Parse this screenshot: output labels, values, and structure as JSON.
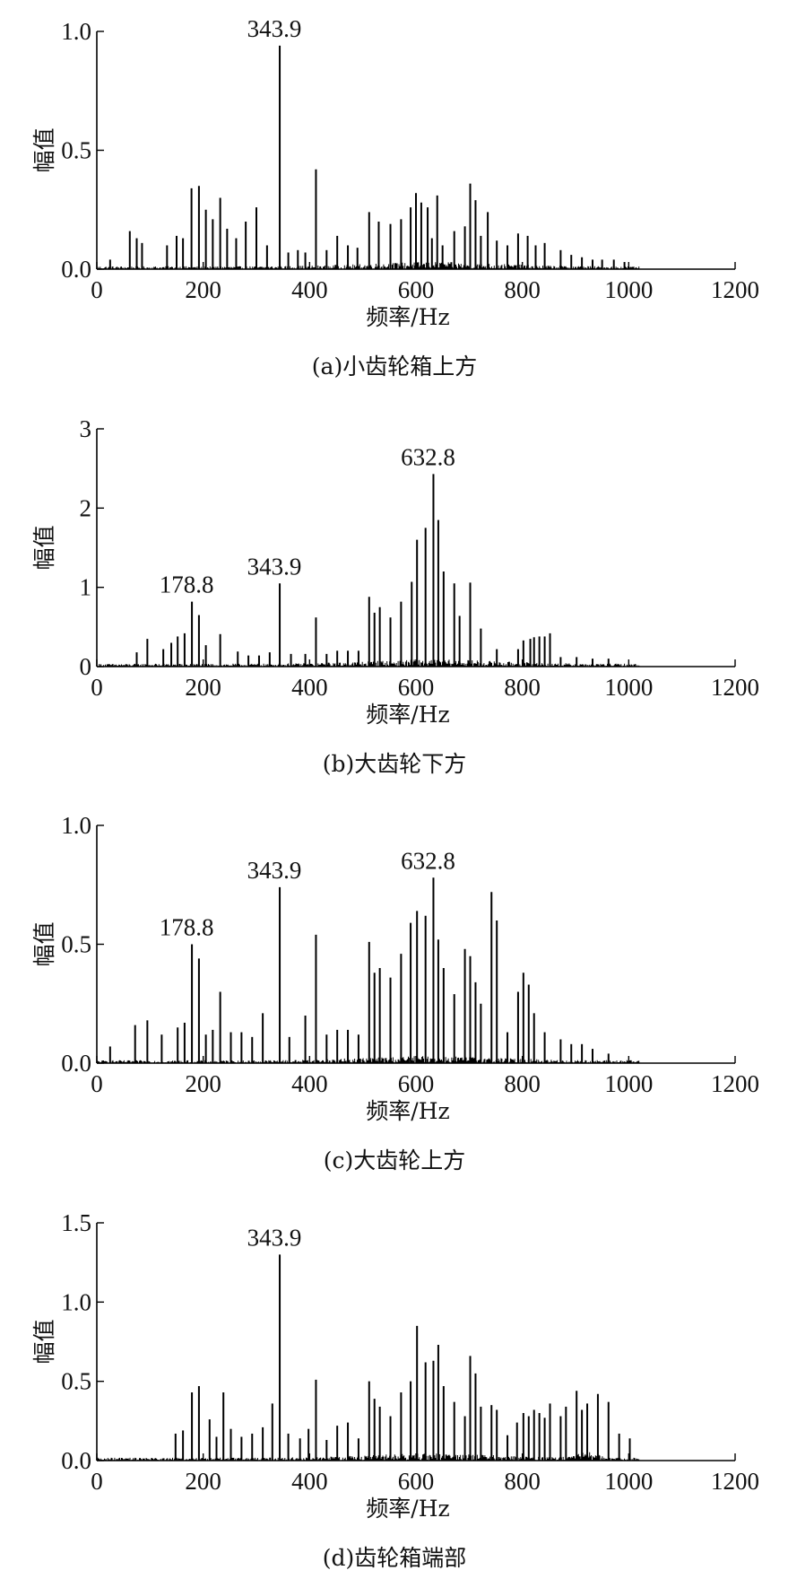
{
  "chart_data": [
    {
      "type": "bar",
      "caption": "(a)小齿轮箱上方",
      "xlabel": "频率/Hz",
      "ylabel": "幅值",
      "xlim": [
        0,
        1200
      ],
      "ylim": [
        0,
        1.0
      ],
      "xticks": [
        0,
        200,
        400,
        600,
        800,
        1000,
        1200
      ],
      "xtick_labels": [
        "0",
        "200",
        "400",
        "600",
        "800",
        "1000",
        "1200"
      ],
      "yticks": [
        0,
        0.5,
        1.0
      ],
      "ytick_labels": [
        "0.0",
        "0.5",
        "1.0"
      ],
      "annotations": [
        {
          "label": "343.9",
          "x": 343.9,
          "y": 0.94
        }
      ],
      "peaks": {
        "x": [
          25,
          62,
          75,
          85,
          132,
          150,
          162,
          178,
          192,
          205,
          218,
          232,
          245,
          262,
          280,
          300,
          320,
          343.9,
          360,
          378,
          392,
          412,
          432,
          452,
          472,
          490,
          512,
          530,
          552,
          572,
          590,
          600,
          610,
          622,
          630,
          640,
          650,
          672,
          692,
          702,
          712,
          722,
          735,
          752,
          772,
          792,
          810,
          825,
          842,
          872,
          892,
          912,
          932,
          950,
          972,
          992
        ],
        "values": [
          0.04,
          0.16,
          0.13,
          0.11,
          0.1,
          0.14,
          0.13,
          0.34,
          0.35,
          0.25,
          0.21,
          0.3,
          0.17,
          0.13,
          0.2,
          0.26,
          0.1,
          0.94,
          0.07,
          0.08,
          0.07,
          0.42,
          0.08,
          0.14,
          0.1,
          0.09,
          0.24,
          0.2,
          0.19,
          0.21,
          0.26,
          0.32,
          0.28,
          0.26,
          0.13,
          0.31,
          0.1,
          0.16,
          0.18,
          0.36,
          0.29,
          0.14,
          0.24,
          0.12,
          0.1,
          0.15,
          0.14,
          0.1,
          0.11,
          0.08,
          0.06,
          0.05,
          0.04,
          0.04,
          0.04,
          0.03
        ]
      }
    },
    {
      "type": "bar",
      "caption": "(b)大齿轮下方",
      "xlabel": "频率/Hz",
      "ylabel": "幅值",
      "xlim": [
        0,
        1200
      ],
      "ylim": [
        0,
        3
      ],
      "xticks": [
        0,
        200,
        400,
        600,
        800,
        1000,
        1200
      ],
      "xtick_labels": [
        "0",
        "200",
        "400",
        "600",
        "800",
        "1000",
        "1200"
      ],
      "yticks": [
        0,
        1,
        2,
        3
      ],
      "ytick_labels": [
        "0",
        "1",
        "2",
        "3"
      ],
      "annotations": [
        {
          "label": "178.8",
          "x": 178.8,
          "y": 0.82
        },
        {
          "label": "343.9",
          "x": 343.9,
          "y": 1.05
        },
        {
          "label": "632.8",
          "x": 632.8,
          "y": 2.43
        }
      ],
      "peaks": {
        "x": [
          75,
          95,
          125,
          140,
          152,
          165,
          178.8,
          192,
          205,
          232,
          265,
          285,
          305,
          325,
          343.9,
          365,
          392,
          412,
          432,
          452,
          472,
          492,
          512,
          522,
          532,
          552,
          572,
          592,
          602,
          618,
          632.8,
          642,
          652,
          672,
          682,
          702,
          722,
          752,
          792,
          802,
          815,
          822,
          832,
          842,
          852,
          872,
          902,
          932,
          962
        ],
        "values": [
          0.18,
          0.35,
          0.22,
          0.3,
          0.38,
          0.42,
          0.82,
          0.65,
          0.27,
          0.41,
          0.19,
          0.14,
          0.14,
          0.18,
          1.05,
          0.16,
          0.16,
          0.62,
          0.16,
          0.2,
          0.2,
          0.2,
          0.88,
          0.68,
          0.75,
          0.62,
          0.82,
          1.07,
          1.6,
          1.75,
          2.43,
          1.85,
          1.2,
          1.05,
          0.64,
          1.06,
          0.48,
          0.22,
          0.22,
          0.33,
          0.35,
          0.37,
          0.38,
          0.38,
          0.42,
          0.12,
          0.12,
          0.1,
          0.1
        ]
      }
    },
    {
      "type": "bar",
      "caption": "(c)大齿轮上方",
      "xlabel": "频率/Hz",
      "ylabel": "幅值",
      "xlim": [
        0,
        1200
      ],
      "ylim": [
        0,
        1.0
      ],
      "xticks": [
        0,
        200,
        400,
        600,
        800,
        1000,
        1200
      ],
      "xtick_labels": [
        "0",
        "200",
        "400",
        "600",
        "800",
        "1000",
        "1200"
      ],
      "yticks": [
        0,
        0.5,
        1.0
      ],
      "ytick_labels": [
        "0.0",
        "0.5",
        "1.0"
      ],
      "annotations": [
        {
          "label": "178.8",
          "x": 178.8,
          "y": 0.5
        },
        {
          "label": "343.9",
          "x": 343.9,
          "y": 0.74
        },
        {
          "label": "632.8",
          "x": 632.8,
          "y": 0.78
        }
      ],
      "peaks": {
        "x": [
          25,
          72,
          95,
          122,
          152,
          165,
          178.8,
          192,
          205,
          218,
          232,
          252,
          272,
          292,
          312,
          343.9,
          362,
          392,
          412,
          432,
          452,
          472,
          492,
          512,
          522,
          532,
          552,
          572,
          590,
          602,
          618,
          632.8,
          642,
          652,
          672,
          692,
          702,
          712,
          722,
          742,
          752,
          772,
          792,
          802,
          812,
          822,
          842,
          872,
          892,
          912,
          932,
          962
        ],
        "values": [
          0.07,
          0.16,
          0.18,
          0.12,
          0.15,
          0.17,
          0.5,
          0.44,
          0.12,
          0.14,
          0.3,
          0.13,
          0.13,
          0.11,
          0.21,
          0.74,
          0.11,
          0.2,
          0.54,
          0.12,
          0.14,
          0.14,
          0.12,
          0.51,
          0.38,
          0.4,
          0.36,
          0.46,
          0.59,
          0.64,
          0.62,
          0.78,
          0.52,
          0.4,
          0.29,
          0.48,
          0.45,
          0.34,
          0.25,
          0.72,
          0.6,
          0.13,
          0.3,
          0.38,
          0.33,
          0.21,
          0.13,
          0.1,
          0.08,
          0.08,
          0.06,
          0.04
        ]
      }
    },
    {
      "type": "bar",
      "caption": "(d)齿轮箱端部",
      "xlabel": "频率/Hz",
      "ylabel": "幅值",
      "xlim": [
        0,
        1200
      ],
      "ylim": [
        0,
        1.5
      ],
      "xticks": [
        0,
        200,
        400,
        600,
        800,
        1000,
        1200
      ],
      "xtick_labels": [
        "0",
        "200",
        "400",
        "600",
        "800",
        "1000",
        "1200"
      ],
      "yticks": [
        0,
        0.5,
        1.0,
        1.5
      ],
      "ytick_labels": [
        "0.0",
        "0.5",
        "1.0",
        "1.5"
      ],
      "annotations": [
        {
          "label": "343.9",
          "x": 343.9,
          "y": 1.3
        }
      ],
      "peaks": {
        "x": [
          148,
          162,
          178.8,
          192,
          212,
          225,
          238,
          252,
          272,
          292,
          312,
          330,
          343.9,
          360,
          382,
          398,
          412,
          432,
          452,
          472,
          492,
          512,
          522,
          532,
          552,
          572,
          590,
          602,
          618,
          632.8,
          642,
          652,
          672,
          692,
          702,
          712,
          722,
          742,
          752,
          772,
          790,
          802,
          812,
          822,
          832,
          842,
          852,
          872,
          882,
          902,
          912,
          922,
          942,
          962,
          982,
          1002
        ],
        "values": [
          0.17,
          0.19,
          0.43,
          0.47,
          0.26,
          0.15,
          0.43,
          0.2,
          0.15,
          0.17,
          0.21,
          0.36,
          1.3,
          0.17,
          0.14,
          0.2,
          0.51,
          0.13,
          0.22,
          0.24,
          0.14,
          0.5,
          0.39,
          0.34,
          0.28,
          0.43,
          0.5,
          0.85,
          0.62,
          0.63,
          0.73,
          0.47,
          0.37,
          0.28,
          0.66,
          0.55,
          0.34,
          0.35,
          0.32,
          0.16,
          0.24,
          0.3,
          0.28,
          0.32,
          0.3,
          0.27,
          0.36,
          0.28,
          0.34,
          0.44,
          0.32,
          0.36,
          0.42,
          0.37,
          0.17,
          0.14
        ]
      }
    }
  ]
}
